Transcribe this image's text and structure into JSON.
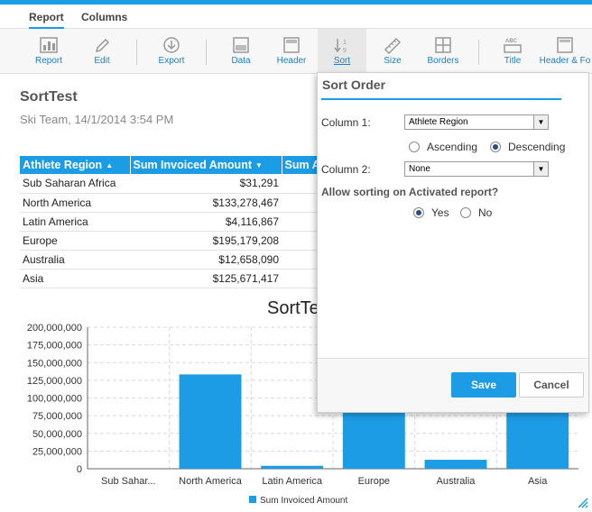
{
  "tabs": [
    {
      "label": "Report"
    },
    {
      "label": "Columns"
    }
  ],
  "toolbar": [
    {
      "label": "Report",
      "icon": "bar-chart-icon"
    },
    {
      "label": "Edit",
      "icon": "pencil-icon"
    },
    {
      "label": "Export",
      "icon": "download-icon"
    },
    {
      "label": "Data",
      "icon": "data-panel-icon"
    },
    {
      "label": "Header",
      "icon": "header-panel-icon"
    },
    {
      "label": "Sort",
      "icon": "sort-icon"
    },
    {
      "label": "Size",
      "icon": "ruler-icon"
    },
    {
      "label": "Borders",
      "icon": "borders-icon"
    },
    {
      "label": "Title",
      "icon": "title-icon"
    },
    {
      "label": "Header & Fo",
      "icon": "header-footer-icon"
    }
  ],
  "report": {
    "title": "SortTest",
    "subtitle": "Ski Team, 14/1/2014 3:54 PM"
  },
  "table": {
    "headers": [
      "Athlete Region",
      "Sum Invoiced Amount",
      "Sum A"
    ],
    "rows": [
      [
        "Sub Saharan Africa",
        "$31,291"
      ],
      [
        "North America",
        "$133,278,467"
      ],
      [
        "Latin America",
        "$4,116,867"
      ],
      [
        "Europe",
        "$195,179,208"
      ],
      [
        "Australia",
        "$12,658,090"
      ],
      [
        "Asia",
        "$125,671,417"
      ]
    ]
  },
  "chart_data": {
    "type": "bar",
    "title": "SortTe",
    "categories": [
      "Sub Sahar...",
      "North America",
      "Latin America",
      "Europe",
      "Australia",
      "Asia"
    ],
    "series": [
      {
        "name": "Sum Invoiced Amount",
        "values": [
          31291,
          133278467,
          4116867,
          195179208,
          12658090,
          125671417
        ]
      }
    ],
    "ylim": [
      0,
      200000000
    ],
    "yticks": [
      0,
      25000000,
      50000000,
      75000000,
      100000000,
      125000000,
      150000000,
      175000000,
      200000000
    ],
    "ytick_labels": [
      "0",
      "25,000,000",
      "50,000,000",
      "75,000,000",
      "100,000,000",
      "125,000,000",
      "150,000,000",
      "175,000,000",
      "200,000,000"
    ],
    "grid": true,
    "legend": "bottom",
    "color": "#1c9ce5"
  },
  "sort_popup": {
    "title": "Sort Order",
    "column1_label": "Column 1:",
    "column1_value": "Athlete Region",
    "ascending_label": "Ascending",
    "descending_label": "Descending",
    "order_selected": "Descending",
    "column2_label": "Column 2:",
    "column2_value": "None",
    "allow_label": "Allow sorting on Activated report?",
    "yes_label": "Yes",
    "no_label": "No",
    "allow_selected": "Yes",
    "save_label": "Save",
    "cancel_label": "Cancel"
  },
  "colors": {
    "accent": "#1c9ce5"
  }
}
